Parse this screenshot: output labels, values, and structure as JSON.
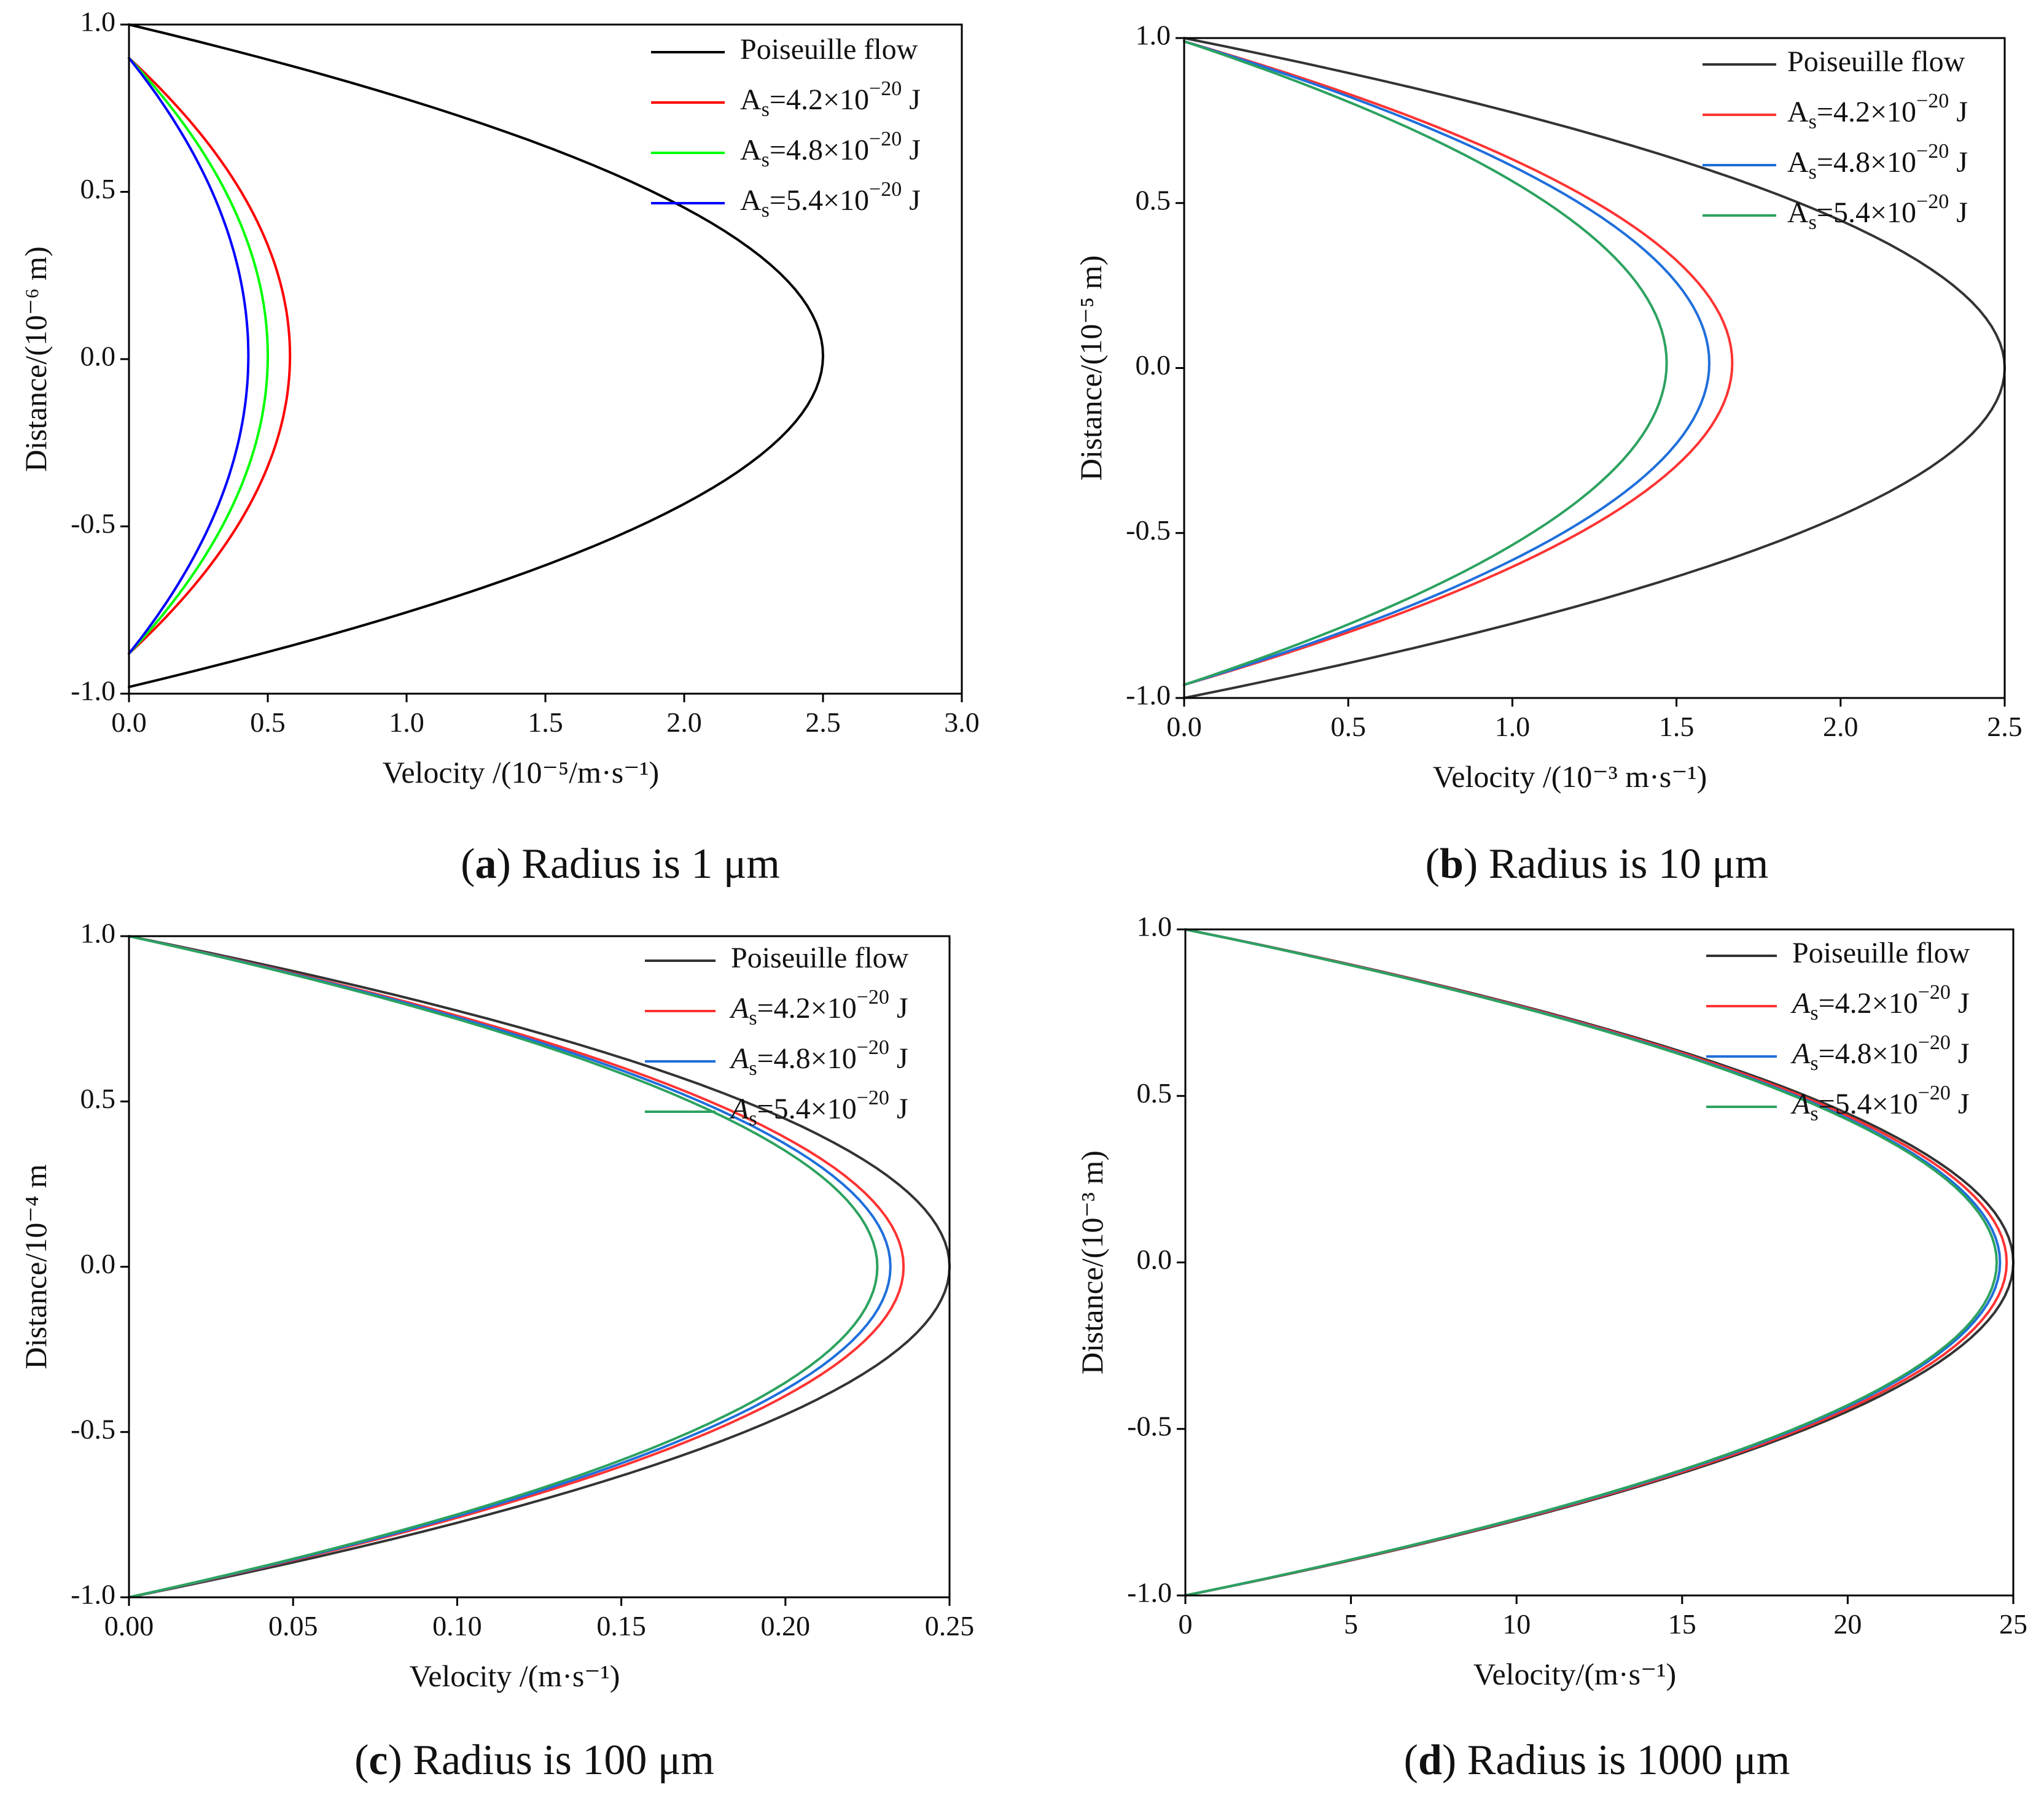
{
  "chart_data": [
    {
      "id": "a",
      "type": "line",
      "caption_letter": "a",
      "caption_text": "Radius is 1 μm",
      "xlabel": "Velocity /(10⁻⁵/m·s⁻¹)",
      "ylabel": "Distance/(10⁻⁶ m)",
      "xlim": [
        0,
        3.0
      ],
      "ylim": [
        -1.0,
        1.0
      ],
      "xticks": [
        0,
        0.5,
        1.0,
        1.5,
        2.0,
        2.5,
        3.0
      ],
      "xtick_labels": [
        "0.0",
        "0.5",
        "1.0",
        "1.5",
        "2.0",
        "2.5",
        "3.0"
      ],
      "yticks": [
        -1.0,
        -0.5,
        0,
        0.5,
        1.0
      ],
      "ytick_labels": [
        "-1.0",
        "-0.5",
        "0.0",
        "0.5",
        "1.0"
      ],
      "legend_position": "top-right",
      "series": [
        {
          "name": "Poiseuille flow",
          "color": "#000000",
          "vmax": 2.5,
          "wall_top": 1.0,
          "wall_bottom": -0.98
        },
        {
          "name": "As=4.2×10⁻²⁰ J",
          "color": "#ff0000",
          "vmax": 0.58,
          "wall_top": 0.9,
          "wall_bottom": -0.88
        },
        {
          "name": "As=4.8×10⁻²⁰ J",
          "color": "#00ff00",
          "vmax": 0.5,
          "wall_top": 0.9,
          "wall_bottom": -0.88
        },
        {
          "name": "As=5.4×10⁻²⁰ J",
          "color": "#0000ff",
          "vmax": 0.43,
          "wall_top": 0.9,
          "wall_bottom": -0.88
        }
      ]
    },
    {
      "id": "b",
      "type": "line",
      "caption_letter": "b",
      "caption_text": "Radius is 10 μm",
      "xlabel": "Velocity /(10⁻³ m·s⁻¹)",
      "ylabel": "Distance/(10⁻⁵ m)",
      "xlim": [
        0,
        2.5
      ],
      "ylim": [
        -1.0,
        1.0
      ],
      "xticks": [
        0,
        0.5,
        1.0,
        1.5,
        2.0,
        2.5
      ],
      "xtick_labels": [
        "0.0",
        "0.5",
        "1.0",
        "1.5",
        "2.0",
        "2.5"
      ],
      "yticks": [
        -1.0,
        -0.5,
        0,
        0.5,
        1.0
      ],
      "ytick_labels": [
        "-1.0",
        "-0.5",
        "0.0",
        "0.5",
        "1.0"
      ],
      "legend_position": "top-right",
      "series": [
        {
          "name": "Poiseuille flow",
          "color": "#333333",
          "vmax": 2.5,
          "wall_top": 1.0,
          "wall_bottom": -1.0
        },
        {
          "name": "As=4.2×10⁻²⁰ J",
          "color": "#ff3333",
          "vmax": 1.67,
          "wall_top": 0.99,
          "wall_bottom": -0.96
        },
        {
          "name": "As=4.8×10⁻²⁰ J",
          "color": "#1f6fdb",
          "vmax": 1.6,
          "wall_top": 0.99,
          "wall_bottom": -0.96
        },
        {
          "name": "As=5.4×10⁻²⁰ J",
          "color": "#2ca25f",
          "vmax": 1.47,
          "wall_top": 0.99,
          "wall_bottom": -0.96
        }
      ]
    },
    {
      "id": "c",
      "type": "line",
      "caption_letter": "c",
      "caption_text": "Radius is 100 μm",
      "xlabel": "Velocity /(m·s⁻¹)",
      "ylabel": "Distance/10⁻⁴ m",
      "xlim": [
        0,
        0.25
      ],
      "ylim": [
        -1.0,
        1.0
      ],
      "xticks": [
        0,
        0.05,
        0.1,
        0.15,
        0.2,
        0.25
      ],
      "xtick_labels": [
        "0.00",
        "0.05",
        "0.10",
        "0.15",
        "0.20",
        "0.25"
      ],
      "yticks": [
        -1.0,
        -0.5,
        0,
        0.5,
        1.0
      ],
      "ytick_labels": [
        "-1.0",
        "-0.5",
        "0.0",
        "0.5",
        "1.0"
      ],
      "legend_position": "top-right",
      "series": [
        {
          "name": "Poiseuille flow",
          "color": "#333333",
          "vmax": 0.25,
          "wall_top": 1.0,
          "wall_bottom": -1.0
        },
        {
          "name": "As=4.2×10⁻²⁰ J",
          "color": "#ff3333",
          "vmax": 0.236,
          "wall_top": 1.0,
          "wall_bottom": -1.0
        },
        {
          "name": "As=4.8×10⁻²⁰ J",
          "color": "#1f6fdb",
          "vmax": 0.232,
          "wall_top": 1.0,
          "wall_bottom": -1.0
        },
        {
          "name": "As=5.4×10⁻²⁰ J",
          "color": "#2ca25f",
          "vmax": 0.228,
          "wall_top": 1.0,
          "wall_bottom": -1.0
        }
      ]
    },
    {
      "id": "d",
      "type": "line",
      "caption_letter": "d",
      "caption_text": "Radius is 1000 μm",
      "xlabel": "Velocity/(m·s⁻¹)",
      "ylabel": "Distance/(10⁻³ m)",
      "xlim": [
        0,
        25
      ],
      "ylim": [
        -1.0,
        1.0
      ],
      "xticks": [
        0,
        5,
        10,
        15,
        20,
        25
      ],
      "xtick_labels": [
        "0",
        "5",
        "10",
        "15",
        "20",
        "25"
      ],
      "yticks": [
        -1.0,
        -0.5,
        0,
        0.5,
        1.0
      ],
      "ytick_labels": [
        "-1.0",
        "-0.5",
        "0.0",
        "0.5",
        "1.0"
      ],
      "legend_position": "top-right",
      "series": [
        {
          "name": "Poiseuille flow",
          "color": "#333333",
          "vmax": 25.0,
          "wall_top": 1.0,
          "wall_bottom": -1.0
        },
        {
          "name": "As=4.2×10⁻²⁰ J",
          "color": "#ff3333",
          "vmax": 24.8,
          "wall_top": 1.0,
          "wall_bottom": -1.0
        },
        {
          "name": "As=4.8×10⁻²⁰ J",
          "color": "#1f6fdb",
          "vmax": 24.6,
          "wall_top": 1.0,
          "wall_bottom": -1.0
        },
        {
          "name": "As=5.4×10⁻²⁰ J",
          "color": "#2ca25f",
          "vmax": 24.5,
          "wall_top": 1.0,
          "wall_bottom": -1.0
        }
      ]
    }
  ]
}
